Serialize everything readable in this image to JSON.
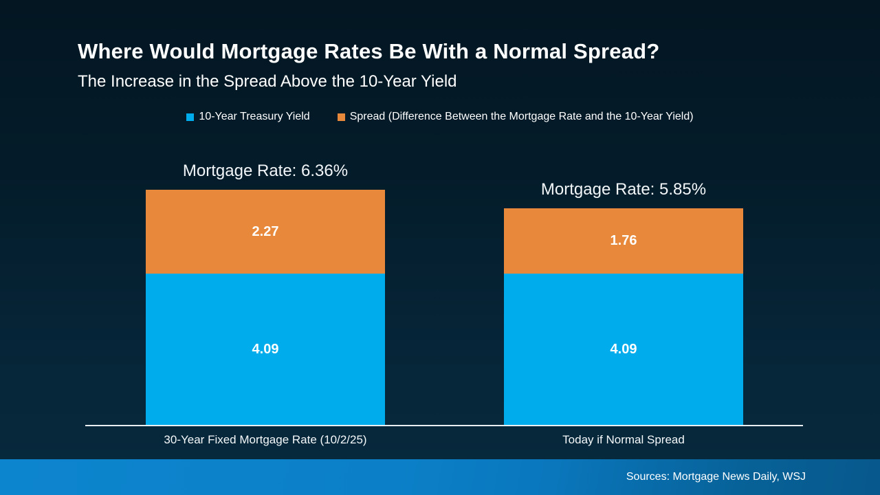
{
  "slide": {
    "title": "Where Would Mortgage Rates Be With a Normal Spread?",
    "subtitle": "The Increase in the Spread Above the 10-Year Yield",
    "source": "Sources: Mortgage News Daily, WSJ"
  },
  "legend": [
    {
      "label": "10-Year Treasury Yield",
      "color": "#00ACEC"
    },
    {
      "label": "Spread (Difference Between the Mortgage Rate and the 10-Year Yield)",
      "color": "#E8883A"
    }
  ],
  "chart_data": {
    "type": "bar",
    "stacked": true,
    "categories": [
      "30-Year Fixed Mortgage Rate (10/2/25)",
      "Today if Normal Spread"
    ],
    "series": [
      {
        "name": "10-Year Treasury Yield",
        "color": "#00ACEC",
        "values": [
          4.09,
          4.09
        ]
      },
      {
        "name": "Spread (Difference Between the Mortgage Rate and the 10-Year Yield)",
        "color": "#E8883A",
        "values": [
          2.27,
          1.76
        ]
      }
    ],
    "totals": [
      6.36,
      5.85
    ],
    "totals_labels": [
      "Mortgage Rate: 6.36%",
      "Mortgage Rate: 5.85%"
    ],
    "ylim": [
      0,
      6.6
    ],
    "grid": false,
    "legend_position": "top",
    "value_labels_inside": true
  },
  "colors": {
    "background_top": "#031622",
    "background_bottom": "#07293c",
    "bar_blue": "#00ACEC",
    "bar_orange": "#E8883A",
    "axis_line": "#e9eef1",
    "footer_left": "#0d85ce",
    "footer_right": "#07588c",
    "text": "#ffffff"
  }
}
